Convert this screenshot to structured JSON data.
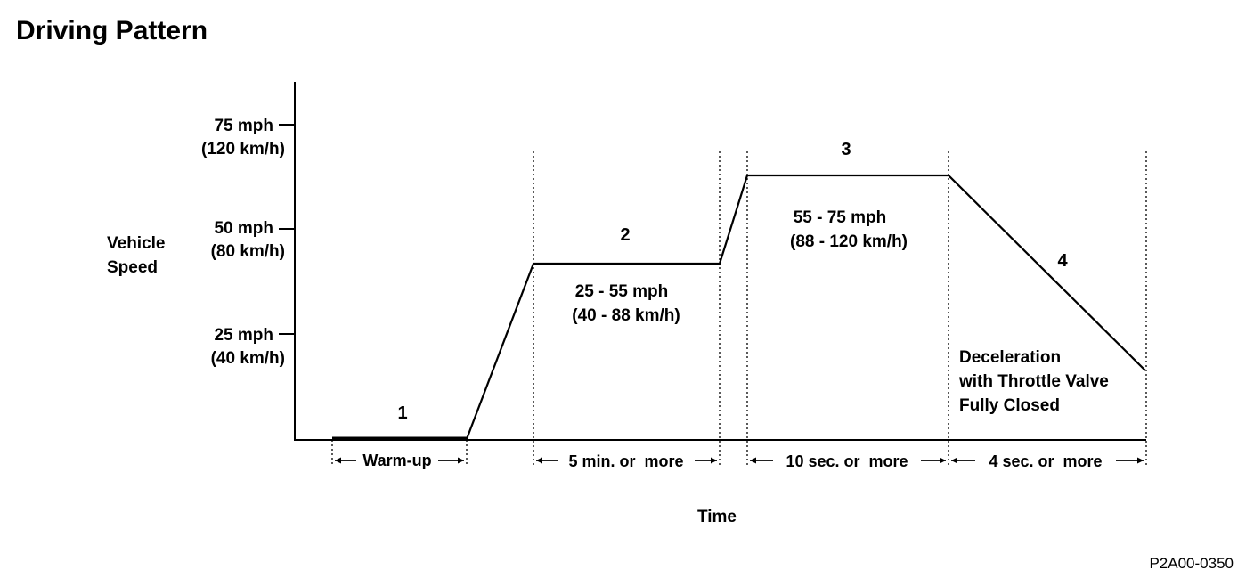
{
  "title": "Driving Pattern",
  "y_axis": {
    "label_line1": "Vehicle",
    "label_line2": "Speed",
    "ticks": [
      {
        "mph": "75 mph",
        "kmh": "(120 km/h)"
      },
      {
        "mph": "50 mph",
        "kmh": "(80 km/h)"
      },
      {
        "mph": "25 mph",
        "kmh": "(40 km/h)"
      }
    ]
  },
  "x_axis": {
    "label": "Time"
  },
  "segments": [
    {
      "number": "1",
      "duration": "Warm-up"
    },
    {
      "number": "2",
      "speed_mph": "25 - 55 mph",
      "speed_kmh": "(40 - 88 km/h)",
      "duration": "5 min. or  more"
    },
    {
      "number": "3",
      "speed_mph": "55 - 75 mph",
      "speed_kmh": "(88 - 120 km/h)",
      "duration": "10 sec. or  more"
    },
    {
      "number": "4",
      "note_line1": "Deceleration",
      "note_line2": "with Throttle Valve",
      "note_line3": "Fully Closed",
      "duration": "4 sec. or  more"
    }
  ],
  "figure_code": "P2A00-0350"
}
